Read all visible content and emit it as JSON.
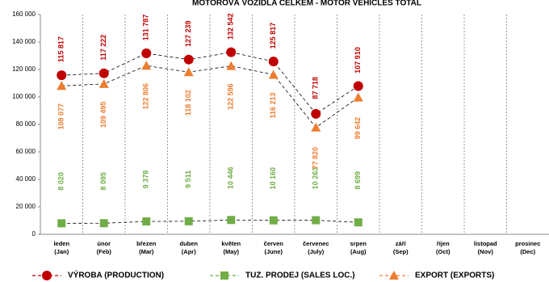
{
  "chart_data": {
    "type": "line",
    "title": "MOTOROVÁ VOZIDLA CELKEM - MOTOR VEHICLES TOTAL",
    "categories": [
      "leden\n(Jan)",
      "únor\n(Feb)",
      "březen\n(Mar)",
      "duben\n(Apr)",
      "květen\n(May)",
      "červen\n(June)",
      "červenec\n(July)",
      "srpen\n(Aug)",
      "září\n(Sep)",
      "říjen\n(Oct)",
      "listopad\n(Nov)",
      "prosinec\n(Dec)"
    ],
    "series": [
      {
        "name": "VÝROBA (PRODUCTION)",
        "color": "#c00000",
        "marker": "circle",
        "values": [
          115817,
          117222,
          131787,
          127239,
          132542,
          125817,
          87718,
          107910,
          null,
          null,
          null,
          null
        ],
        "value_labels": [
          "115 817",
          "117 222",
          "131 787",
          "127 239",
          "132 542",
          "125 817",
          "87 718",
          "107 910",
          null,
          null,
          null,
          null
        ]
      },
      {
        "name": "TUZ. PRODEJ (SALES LOC.)",
        "color": "#70ad47",
        "marker": "square",
        "values": [
          8020,
          8095,
          9378,
          9511,
          10446,
          10160,
          10263,
          8699,
          null,
          null,
          null,
          null
        ],
        "value_labels": [
          "8 020",
          "8 095",
          "9 378",
          "9 511",
          "10 446",
          "10 160",
          "10 263",
          "8 699",
          null,
          null,
          null,
          null
        ]
      },
      {
        "name": "EXPORT (EXPORTS)",
        "color": "#ed7d31",
        "marker": "triangle",
        "values": [
          108077,
          109495,
          122806,
          118102,
          122596,
          116213,
          77820,
          99642,
          null,
          null,
          null,
          null
        ],
        "value_labels": [
          "108 077",
          "109 495",
          "122 806",
          "118 102",
          "122 596",
          "116 213",
          "77 820",
          "99 642",
          null,
          null,
          null,
          null
        ]
      }
    ],
    "ylim": [
      0,
      160000
    ],
    "yticks": [
      0,
      {
        "value": 20000,
        "label": "20 000"
      },
      {
        "value": 40000,
        "label": "40 000"
      },
      {
        "value": 60000,
        "label": "60 000"
      },
      {
        "value": 80000,
        "label": "80 000"
      },
      {
        "value": 100000,
        "label": "100 000"
      },
      {
        "value": 120000,
        "label": "120 000"
      },
      {
        "value": 140000,
        "label": "140 000"
      },
      {
        "value": 160000,
        "label": "160 000"
      }
    ],
    "grid": "x",
    "legend": "bottom"
  }
}
